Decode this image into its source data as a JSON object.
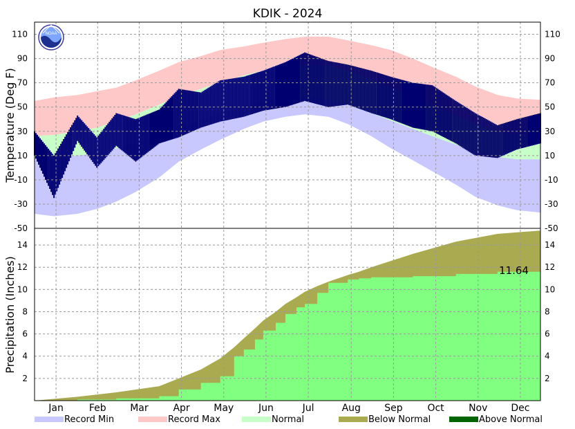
{
  "title": "KDIK - 2024",
  "colors": {
    "record_min": "#c8c8ff",
    "record_max": "#ffc8c8",
    "normal": "#c8ffc8",
    "actual": "#000070",
    "below_normal": "#aaaa50",
    "above_normal": "#006400",
    "precip_actual": "#80ff80",
    "grid": "#999999"
  },
  "legend": [
    {
      "label": "Record Min",
      "color": "#c8c8ff"
    },
    {
      "label": "Record Max",
      "color": "#ffc8c8"
    },
    {
      "label": "Normal",
      "color": "#c8ffc8"
    },
    {
      "label": "Below Normal",
      "color": "#aaaa50"
    },
    {
      "label": "Above Normal",
      "color": "#006400"
    }
  ],
  "logo_text": "NOAA",
  "months": [
    "Jan",
    "Feb",
    "Mar",
    "Apr",
    "May",
    "Jun",
    "Jul",
    "Aug",
    "Sep",
    "Oct",
    "Nov",
    "Dec"
  ],
  "chart_data": [
    {
      "type": "area",
      "ylabel": "Temperature (Deg F)",
      "ylim": [
        -50,
        120
      ],
      "yticks": [
        110,
        90,
        70,
        50,
        30,
        10,
        -10,
        -30,
        -50
      ],
      "grid": true,
      "x_unit": "day of year",
      "days": [
        1,
        15,
        32,
        46,
        60,
        74,
        91,
        105,
        121,
        135,
        152,
        166,
        182,
        196,
        213,
        227,
        244,
        258,
        274,
        288,
        305,
        319,
        335,
        349,
        366
      ],
      "series": [
        {
          "name": "Record Max",
          "values": [
            55,
            58,
            60,
            63,
            66,
            72,
            80,
            87,
            92,
            97,
            100,
            103,
            106,
            108,
            108,
            105,
            101,
            97,
            90,
            83,
            75,
            67,
            60,
            57,
            56
          ]
        },
        {
          "name": "Record Min",
          "values": [
            -38,
            -40,
            -38,
            -34,
            -28,
            -20,
            -8,
            5,
            15,
            23,
            32,
            38,
            42,
            44,
            42,
            36,
            26,
            16,
            6,
            -3,
            -14,
            -24,
            -31,
            -35,
            -37
          ]
        },
        {
          "name": "Normal",
          "values": [
            [
              8,
              26
            ],
            [
              8,
              27
            ],
            [
              10,
              30
            ],
            [
              12,
              33
            ],
            [
              16,
              38
            ],
            [
              20,
              44
            ],
            [
              28,
              52
            ],
            [
              33,
              59
            ],
            [
              39,
              65
            ],
            [
              45,
              70
            ],
            [
              51,
              76
            ],
            [
              55,
              80
            ],
            [
              58,
              84
            ],
            [
              58,
              85
            ],
            [
              56,
              84
            ],
            [
              52,
              80
            ],
            [
              45,
              73
            ],
            [
              39,
              66
            ],
            [
              32,
              58
            ],
            [
              26,
              51
            ],
            [
              19,
              43
            ],
            [
              13,
              36
            ],
            [
              9,
              30
            ],
            [
              7,
              27
            ],
            [
              7,
              26
            ]
          ]
        },
        {
          "name": "Actual",
          "values": [
            [
              10,
              30
            ],
            [
              -25,
              10
            ],
            [
              22,
              43
            ],
            [
              0,
              25
            ],
            [
              18,
              45
            ],
            [
              5,
              40
            ],
            [
              20,
              48
            ],
            [
              25,
              65
            ],
            [
              33,
              62
            ],
            [
              38,
              72
            ],
            [
              42,
              75
            ],
            [
              47,
              80
            ],
            [
              50,
              87
            ],
            [
              55,
              95
            ],
            [
              50,
              88
            ],
            [
              52,
              85
            ],
            [
              45,
              80
            ],
            [
              40,
              75
            ],
            [
              33,
              70
            ],
            [
              30,
              68
            ],
            [
              20,
              55
            ],
            [
              10,
              45
            ],
            [
              8,
              35
            ],
            [
              15,
              40
            ],
            [
              20,
              45
            ]
          ]
        }
      ]
    },
    {
      "type": "area",
      "ylabel": "Precipitation (Inches)",
      "ylim": [
        0,
        15.5
      ],
      "yticks": [
        2,
        4,
        6,
        8,
        10,
        12,
        14
      ],
      "grid": true,
      "x_unit": "day of year",
      "annotation": "11.64",
      "days": [
        1,
        32,
        60,
        91,
        105,
        121,
        135,
        145,
        152,
        160,
        166,
        175,
        182,
        190,
        196,
        205,
        213,
        227,
        235,
        244,
        274,
        305,
        335,
        366
      ],
      "series": [
        {
          "name": "Normal",
          "values": [
            0,
            0.35,
            0.75,
            1.3,
            2.0,
            2.8,
            3.8,
            4.8,
            5.6,
            6.5,
            7.2,
            8.0,
            8.7,
            9.3,
            9.8,
            10.3,
            10.7,
            11.3,
            11.6,
            12.0,
            13.2,
            14.3,
            15.0,
            15.3
          ]
        },
        {
          "name": "Actual",
          "values": [
            0,
            0.1,
            0.2,
            0.4,
            1.0,
            1.6,
            2.2,
            4.0,
            4.6,
            5.5,
            6.3,
            7.0,
            7.8,
            8.4,
            8.7,
            9.7,
            10.6,
            10.9,
            11.0,
            11.1,
            11.2,
            11.4,
            11.6,
            11.64
          ]
        }
      ]
    }
  ]
}
